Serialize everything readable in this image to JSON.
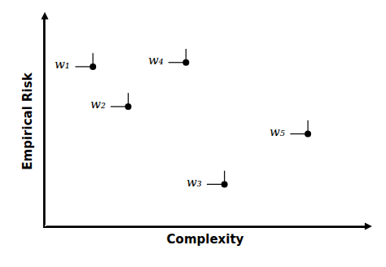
{
  "chart_data": {
    "type": "scatter",
    "x": [
      0.15,
      0.26,
      0.56,
      0.44,
      0.82
    ],
    "values": [
      0.76,
      0.57,
      0.2,
      0.78,
      0.44
    ],
    "annotations": [
      {
        "text": "w₁",
        "x": 0.15,
        "y": 0.76
      },
      {
        "text": "w₂",
        "x": 0.26,
        "y": 0.57
      },
      {
        "text": "w₃",
        "x": 0.56,
        "y": 0.2
      },
      {
        "text": "w₄",
        "x": 0.44,
        "y": 0.78
      },
      {
        "text": "w₅",
        "x": 0.82,
        "y": 0.44
      }
    ],
    "xlabel": "Complexity",
    "ylabel": "Empirical Risk",
    "xlim": [
      0,
      1
    ],
    "ylim": [
      0,
      1
    ],
    "tick_labels": false,
    "grid": false,
    "color": "#000000"
  }
}
